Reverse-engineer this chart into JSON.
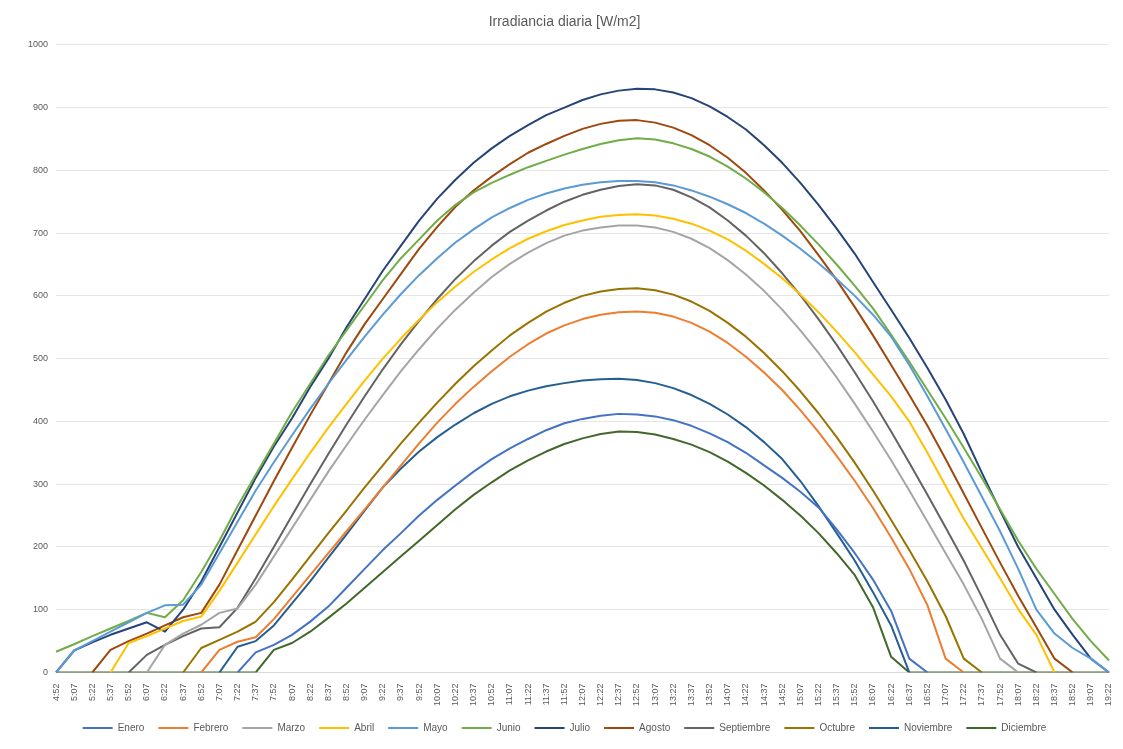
{
  "chart_data": {
    "type": "line",
    "title": "Irradiancia diaria [W/m2]",
    "categories": [
      "4:52",
      "5:07",
      "5:22",
      "5:37",
      "5:52",
      "6:07",
      "6:22",
      "6:37",
      "6:52",
      "7:07",
      "7:22",
      "7:37",
      "7:52",
      "8:07",
      "8:22",
      "8:37",
      "8:52",
      "9:07",
      "9:22",
      "9:37",
      "9:52",
      "10:07",
      "10:22",
      "10:37",
      "10:52",
      "11:07",
      "11:22",
      "11:37",
      "11:52",
      "12:07",
      "12:22",
      "12:37",
      "12:52",
      "13:07",
      "13:22",
      "13:37",
      "13:52",
      "14:07",
      "14:22",
      "14:37",
      "14:52",
      "15:07",
      "15:22",
      "15:37",
      "15:52",
      "16:07",
      "16:22",
      "16:37",
      "16:52",
      "17:07",
      "17:22",
      "17:37",
      "17:52",
      "18:07",
      "18:22",
      "18:37",
      "18:52",
      "19:07",
      "19:22"
    ],
    "series": [
      {
        "name": "Enero",
        "color": "#4472c4",
        "values": [
          null,
          null,
          null,
          null,
          null,
          null,
          null,
          null,
          null,
          null,
          0,
          32,
          44,
          60,
          81,
          105,
          135,
          165,
          195,
          222,
          250,
          275,
          298,
          320,
          340,
          357,
          372,
          386,
          397,
          404,
          409,
          412,
          411,
          408,
          402,
          393,
          381,
          367,
          350,
          330,
          310,
          288,
          263,
          228,
          190,
          148,
          98,
          22,
          0,
          null,
          null,
          null,
          null,
          null,
          null,
          null,
          null,
          null,
          null
        ]
      },
      {
        "name": "Febrero",
        "color": "#ed7d31",
        "values": [
          null,
          null,
          null,
          null,
          null,
          null,
          null,
          null,
          0,
          36,
          49,
          56,
          85,
          120,
          155,
          190,
          225,
          260,
          295,
          330,
          365,
          398,
          428,
          455,
          480,
          503,
          523,
          540,
          553,
          563,
          570,
          574,
          575,
          573,
          567,
          557,
          543,
          525,
          503,
          478,
          450,
          418,
          383,
          345,
          305,
          262,
          215,
          165,
          107,
          22,
          0,
          null,
          null,
          null,
          null,
          null,
          null,
          null,
          null
        ]
      },
      {
        "name": "Marzo",
        "color": "#a5a5a5",
        "values": [
          null,
          null,
          null,
          null,
          null,
          0,
          44,
          62,
          76,
          95,
          102,
          140,
          185,
          230,
          275,
          320,
          362,
          403,
          442,
          480,
          515,
          548,
          578,
          605,
          630,
          651,
          669,
          684,
          696,
          704,
          709,
          712,
          712,
          709,
          702,
          691,
          676,
          657,
          634,
          608,
          578,
          545,
          509,
          470,
          428,
          384,
          338,
          290,
          240,
          190,
          140,
          85,
          22,
          0,
          null,
          null,
          null,
          null,
          null
        ]
      },
      {
        "name": "Abril",
        "color": "#ffc000",
        "values": [
          null,
          null,
          null,
          0,
          47,
          58,
          70,
          82,
          89,
          130,
          175,
          220,
          265,
          308,
          350,
          390,
          428,
          465,
          500,
          532,
          562,
          590,
          615,
          638,
          658,
          676,
          691,
          703,
          713,
          720,
          726,
          729,
          730,
          728,
          723,
          715,
          704,
          690,
          672,
          651,
          628,
          602,
          574,
          543,
          510,
          475,
          440,
          400,
          350,
          297,
          245,
          198,
          150,
          101,
          60,
          0,
          null,
          null,
          null
        ]
      },
      {
        "name": "Mayo",
        "color": "#5b9bd5",
        "values": [
          0,
          35,
          50,
          65,
          80,
          95,
          107,
          108,
          140,
          190,
          240,
          290,
          335,
          378,
          420,
          460,
          498,
          535,
          570,
          603,
          633,
          660,
          685,
          706,
          725,
          740,
          753,
          763,
          771,
          777,
          781,
          783,
          783,
          781,
          776,
          768,
          758,
          746,
          732,
          715,
          696,
          675,
          652,
          627,
          600,
          570,
          535,
          490,
          440,
          388,
          335,
          280,
          225,
          165,
          100,
          62,
          39,
          22,
          0
        ]
      },
      {
        "name": "Junio",
        "color": "#70ad47",
        "values": [
          33,
          45,
          58,
          70,
          82,
          95,
          88,
          115,
          160,
          210,
          265,
          315,
          365,
          415,
          460,
          505,
          545,
          585,
          625,
          660,
          690,
          720,
          745,
          765,
          780,
          793,
          805,
          815,
          825,
          834,
          842,
          848,
          851,
          849,
          843,
          834,
          822,
          806,
          787,
          765,
          740,
          712,
          682,
          650,
          616,
          580,
          538,
          495,
          450,
          405,
          358,
          310,
          260,
          210,
          165,
          125,
          85,
          50,
          19
        ]
      },
      {
        "name": "Julio",
        "color": "#264478",
        "values": [
          0,
          35,
          48,
          60,
          70,
          80,
          65,
          100,
          145,
          200,
          255,
          310,
          360,
          405,
          455,
          500,
          550,
          595,
          640,
          680,
          720,
          755,
          785,
          812,
          835,
          855,
          872,
          888,
          900,
          912,
          921,
          927,
          930,
          929,
          924,
          915,
          902,
          885,
          865,
          840,
          812,
          780,
          745,
          707,
          667,
          622,
          578,
          533,
          485,
          435,
          380,
          318,
          258,
          200,
          150,
          100,
          60,
          22,
          0
        ]
      },
      {
        "name": "Agosto",
        "color": "#9e480e",
        "values": [
          null,
          null,
          0,
          36,
          50,
          62,
          75,
          88,
          95,
          140,
          195,
          250,
          305,
          358,
          410,
          460,
          510,
          555,
          595,
          635,
          675,
          710,
          742,
          768,
          790,
          810,
          828,
          842,
          855,
          866,
          874,
          879,
          880,
          876,
          868,
          856,
          840,
          820,
          796,
          768,
          737,
          703,
          665,
          625,
          582,
          537,
          490,
          442,
          393,
          340,
          285,
          230,
          175,
          122,
          72,
          22,
          0,
          null,
          null
        ]
      },
      {
        "name": "Septiembre",
        "color": "#636363",
        "values": [
          null,
          null,
          null,
          null,
          0,
          28,
          44,
          58,
          70,
          72,
          103,
          150,
          200,
          250,
          300,
          348,
          395,
          440,
          483,
          523,
          560,
          595,
          627,
          655,
          680,
          702,
          720,
          736,
          750,
          761,
          769,
          775,
          778,
          776,
          769,
          757,
          741,
          720,
          696,
          668,
          636,
          601,
          563,
          522,
          478,
          432,
          384,
          334,
          283,
          231,
          178,
          120,
          60,
          14,
          0,
          null,
          null,
          null,
          null
        ]
      },
      {
        "name": "Octubre",
        "color": "#997300",
        "values": [
          null,
          null,
          null,
          null,
          null,
          null,
          null,
          0,
          39,
          52,
          65,
          81,
          112,
          148,
          185,
          222,
          258,
          295,
          330,
          365,
          398,
          430,
          460,
          488,
          513,
          537,
          557,
          575,
          589,
          600,
          607,
          611,
          612,
          609,
          602,
          591,
          576,
          557,
          535,
          509,
          480,
          448,
          413,
          375,
          334,
          290,
          243,
          195,
          145,
          90,
          22,
          0,
          null,
          null,
          null,
          null,
          null,
          null,
          null
        ]
      },
      {
        "name": "Noviembre",
        "color": "#255e91",
        "values": [
          null,
          null,
          null,
          null,
          null,
          null,
          null,
          null,
          null,
          0,
          41,
          50,
          75,
          110,
          145,
          183,
          220,
          258,
          295,
          325,
          352,
          375,
          395,
          413,
          428,
          440,
          449,
          456,
          461,
          465,
          467,
          468,
          466,
          461,
          453,
          442,
          428,
          411,
          391,
          367,
          340,
          305,
          265,
          222,
          178,
          128,
          75,
          0,
          null,
          null,
          null,
          null,
          null,
          null,
          null,
          null,
          null,
          null,
          null
        ]
      },
      {
        "name": "Diciembre",
        "color": "#43682b",
        "values": [
          0,
          0,
          0,
          0,
          0,
          0,
          0,
          0,
          0,
          0,
          0,
          0,
          36,
          47,
          65,
          87,
          110,
          135,
          160,
          185,
          210,
          235,
          260,
          283,
          303,
          322,
          338,
          352,
          364,
          373,
          380,
          384,
          383,
          379,
          372,
          363,
          351,
          336,
          318,
          298,
          275,
          250,
          222,
          190,
          155,
          104,
          25,
          0,
          0,
          0,
          0,
          0,
          0,
          0,
          0,
          0,
          0,
          0,
          0
        ]
      }
    ],
    "ylim": [
      0,
      1000
    ],
    "yticks": [
      0,
      100,
      200,
      300,
      400,
      500,
      600,
      700,
      800,
      900,
      1000
    ],
    "grid": "y",
    "legend": "bottom",
    "marker": "none",
    "line_style": "solid"
  }
}
